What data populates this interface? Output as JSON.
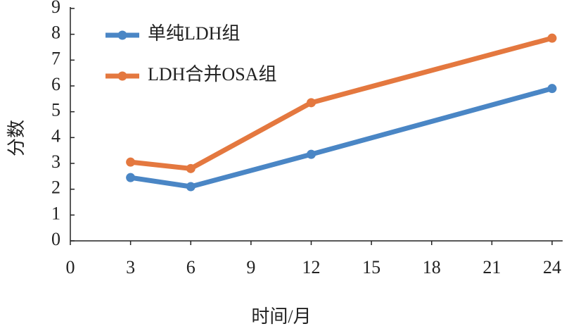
{
  "chart_data": {
    "type": "line",
    "x_label": "时间/月",
    "y_label": "分数",
    "xlim": [
      0,
      24
    ],
    "xticks": [
      0,
      3,
      6,
      9,
      12,
      15,
      18,
      21,
      24
    ],
    "ylim": [
      0,
      9
    ],
    "yticks": [
      0,
      1,
      2,
      3,
      4,
      5,
      6,
      7,
      8,
      9
    ],
    "legend": "upper-left",
    "series": [
      {
        "name": "单纯LDH组",
        "color": "#4a86c5",
        "x": [
          3,
          6,
          12,
          24
        ],
        "values": [
          2.45,
          2.1,
          3.35,
          5.9
        ]
      },
      {
        "name": "LDH合并OSA组",
        "color": "#e4783f",
        "x": [
          3,
          6,
          12,
          24
        ],
        "values": [
          3.05,
          2.8,
          5.35,
          7.85
        ]
      }
    ]
  }
}
